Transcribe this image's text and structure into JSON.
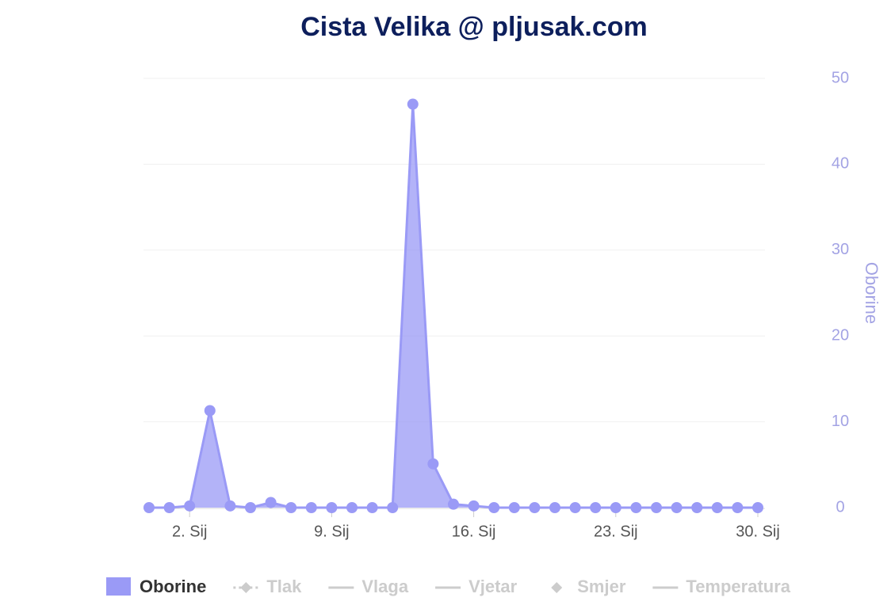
{
  "chart_data": {
    "type": "area",
    "title": "Cista Velika @ pljusak.com",
    "categories": [
      null,
      null,
      "2. Sij",
      null,
      null,
      null,
      null,
      null,
      null,
      "9. Sij",
      null,
      null,
      null,
      null,
      null,
      null,
      "16. Sij",
      null,
      null,
      null,
      null,
      null,
      null,
      "23. Sij",
      null,
      null,
      null,
      null,
      null,
      null,
      "30. Sij"
    ],
    "series": [
      {
        "name": "Oborine",
        "color": "#9a9af6",
        "axis": "y2",
        "values": [
          0,
          0,
          0.2,
          11.3,
          0.2,
          0,
          0.6,
          0,
          0,
          0,
          0,
          0,
          0,
          47,
          5.1,
          0.4,
          0.2,
          0,
          0,
          0,
          0,
          0,
          0,
          0,
          0,
          0,
          0,
          0,
          0,
          0,
          0
        ]
      }
    ],
    "hidden_series": [
      "Tlak",
      "Vlaga",
      "Vjetar",
      "Smjer",
      "Temperatura"
    ],
    "y2_label": "Oborine",
    "y2lim": [
      0,
      50
    ],
    "y2ticks": [
      0,
      10,
      20,
      30,
      40,
      50
    ],
    "grid": true
  }
}
